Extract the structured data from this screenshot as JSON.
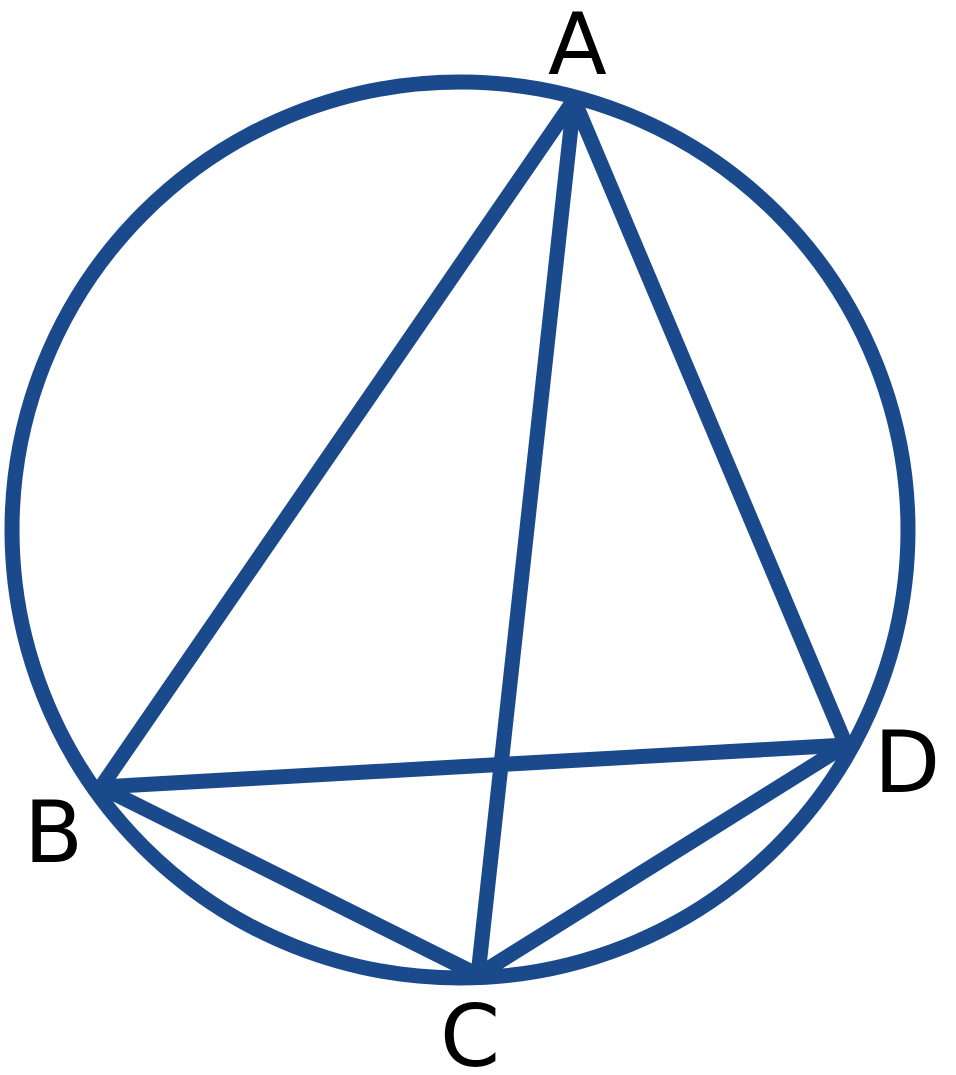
{
  "figure": {
    "description_type": "cyclic quadrilateral inscribed in a circle",
    "stroke_color": "#1a4a8c",
    "label_color": "#000000",
    "points": {
      "A": {
        "label": "A"
      },
      "B": {
        "label": "B"
      },
      "C": {
        "label": "C"
      },
      "D": {
        "label": "D"
      }
    },
    "segments": [
      {
        "name": "segment-ab",
        "from": "A",
        "to": "B"
      },
      {
        "name": "segment-ac",
        "from": "A",
        "to": "C"
      },
      {
        "name": "segment-ad",
        "from": "A",
        "to": "D"
      },
      {
        "name": "segment-bd",
        "from": "B",
        "to": "D"
      },
      {
        "name": "segment-bc",
        "from": "B",
        "to": "C"
      },
      {
        "name": "segment-cd",
        "from": "C",
        "to": "D"
      }
    ]
  }
}
